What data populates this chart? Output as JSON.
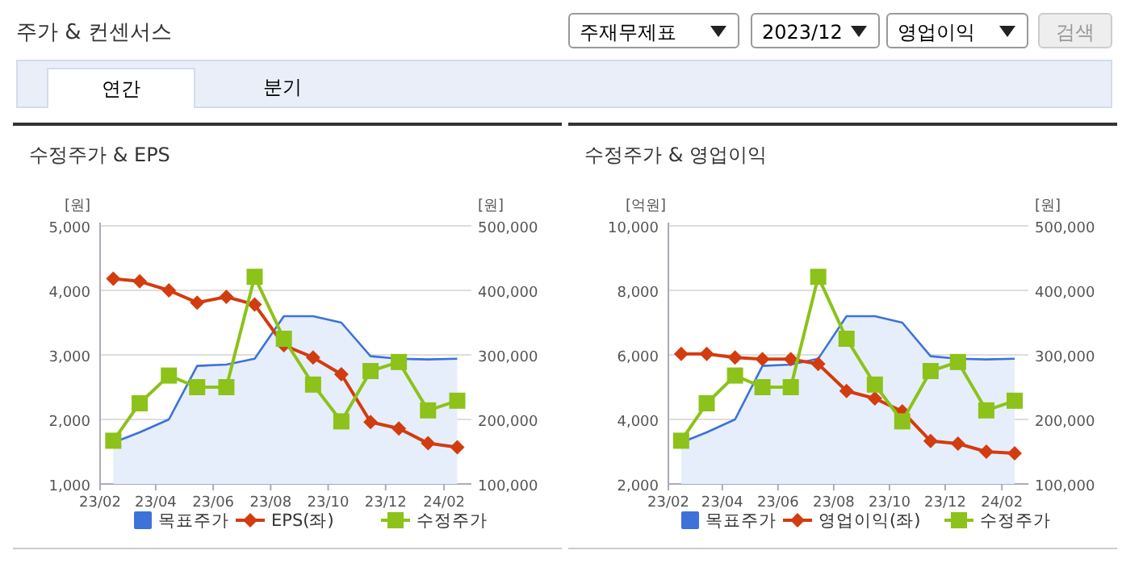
{
  "chart_data": [
    {
      "type": "other",
      "title": "주가 & 컨센서스",
      "annotations": [
        "주재무제표",
        "2023/12",
        "영업이익",
        "검색",
        "연간",
        "분기"
      ]
    },
    {
      "type": "line",
      "title": "수정주가 & EPS",
      "ylabel": "[원]",
      "y2label": "[원]",
      "legend": "bottom",
      "grid": "y",
      "x": [
        "2023-02-15",
        "2023-03-15",
        "2023-04-15",
        "2023-05-15",
        "2023-06-15",
        "2023-07-15",
        "2023-08-15",
        "2023-09-15",
        "2023-10-15",
        "2023-11-15",
        "2023-12-15",
        "2024-01-15",
        "2024-02-15"
      ],
      "xlim": [
        "2023-02-01",
        "2024-03-01"
      ],
      "xticks": [
        {
          "value": "2023-02-01",
          "label": "23/02"
        },
        {
          "value": "2023-04-01",
          "label": "23/04"
        },
        {
          "value": "2023-06-01",
          "label": "23/06"
        },
        {
          "value": "2023-08-01",
          "label": "23/08"
        },
        {
          "value": "2023-10-01",
          "label": "23/10"
        },
        {
          "value": "2023-12-01",
          "label": "23/12"
        },
        {
          "value": "2024-02-01",
          "label": "24/02"
        }
      ],
      "ylim": [
        1000,
        5000
      ],
      "yticks": [
        {
          "value": 1000,
          "label": "1,000"
        },
        {
          "value": 2000,
          "label": "2,000"
        },
        {
          "value": 3000,
          "label": "3,000"
        },
        {
          "value": 4000,
          "label": "4,000"
        },
        {
          "value": 5000,
          "label": "5,000"
        }
      ],
      "y2lim": [
        100000,
        500000
      ],
      "y2ticks": [
        {
          "value": 100000,
          "label": "100,000"
        },
        {
          "value": 200000,
          "label": "200,000"
        },
        {
          "value": 300000,
          "label": "300,000"
        },
        {
          "value": 400000,
          "label": "400,000"
        },
        {
          "value": 500000,
          "label": "500,000"
        }
      ],
      "series": [
        {
          "name": "목표주가",
          "type": "area",
          "axis": "y2",
          "color": "#3d72d9",
          "marker": "none",
          "values": [
            164000,
            180000,
            200000,
            283000,
            285000,
            294000,
            360000,
            360000,
            350000,
            298000,
            294000,
            293000,
            294000
          ]
        },
        {
          "name": "EPS(좌)",
          "type": "line",
          "color": "#d23c0f",
          "marker": "diamond",
          "values": [
            4180,
            4140,
            4000,
            3810,
            3900,
            3780,
            3150,
            2960,
            2700,
            1960,
            1860,
            1630,
            1570
          ]
        },
        {
          "name": "수정주가",
          "type": "line",
          "axis": "y2",
          "color": "#8cc21a",
          "marker": "square",
          "values": [
            167000,
            225000,
            268000,
            250000,
            250000,
            421000,
            325000,
            254000,
            197000,
            275000,
            289000,
            214000,
            229000
          ]
        }
      ]
    },
    {
      "type": "line",
      "title": "수정주가 & 영업이익",
      "ylabel": "[억원]",
      "y2label": "[원]",
      "legend": "bottom",
      "grid": "y",
      "x": [
        "2023-02-15",
        "2023-03-15",
        "2023-04-15",
        "2023-05-15",
        "2023-06-15",
        "2023-07-15",
        "2023-08-15",
        "2023-09-15",
        "2023-10-15",
        "2023-11-15",
        "2023-12-15",
        "2024-01-15",
        "2024-02-15"
      ],
      "xlim": [
        "2023-02-01",
        "2024-03-01"
      ],
      "xticks": [
        {
          "value": "2023-02-01",
          "label": "23/02"
        },
        {
          "value": "2023-04-01",
          "label": "23/04"
        },
        {
          "value": "2023-06-01",
          "label": "23/06"
        },
        {
          "value": "2023-08-01",
          "label": "23/08"
        },
        {
          "value": "2023-10-01",
          "label": "23/10"
        },
        {
          "value": "2023-12-01",
          "label": "23/12"
        },
        {
          "value": "2024-02-01",
          "label": "24/02"
        }
      ],
      "ylim": [
        2000,
        10000
      ],
      "yticks": [
        {
          "value": 2000,
          "label": "2,000"
        },
        {
          "value": 4000,
          "label": "4,000"
        },
        {
          "value": 6000,
          "label": "6,000"
        },
        {
          "value": 8000,
          "label": "8,000"
        },
        {
          "value": 10000,
          "label": "10,000"
        }
      ],
      "y2lim": [
        100000,
        500000
      ],
      "y2ticks": [
        {
          "value": 100000,
          "label": "100,000"
        },
        {
          "value": 200000,
          "label": "200,000"
        },
        {
          "value": 300000,
          "label": "300,000"
        },
        {
          "value": 400000,
          "label": "400,000"
        },
        {
          "value": 500000,
          "label": "500,000"
        }
      ],
      "series": [
        {
          "name": "목표주가",
          "type": "area",
          "axis": "y2",
          "color": "#3d72d9",
          "marker": "none",
          "values": [
            164000,
            180000,
            200000,
            283000,
            285000,
            294000,
            360000,
            360000,
            350000,
            298000,
            294000,
            293000,
            294000
          ]
        },
        {
          "name": "영업이익(좌)",
          "type": "line",
          "color": "#d23c0f",
          "marker": "diamond",
          "values": [
            6030,
            6030,
            5920,
            5870,
            5870,
            5720,
            4880,
            4650,
            4250,
            3330,
            3250,
            3000,
            2950
          ]
        },
        {
          "name": "수정주가",
          "type": "line",
          "axis": "y2",
          "color": "#8cc21a",
          "marker": "square",
          "values": [
            167000,
            225000,
            268000,
            250000,
            250000,
            421000,
            325000,
            254000,
            197000,
            275000,
            289000,
            214000,
            229000
          ]
        }
      ]
    }
  ]
}
